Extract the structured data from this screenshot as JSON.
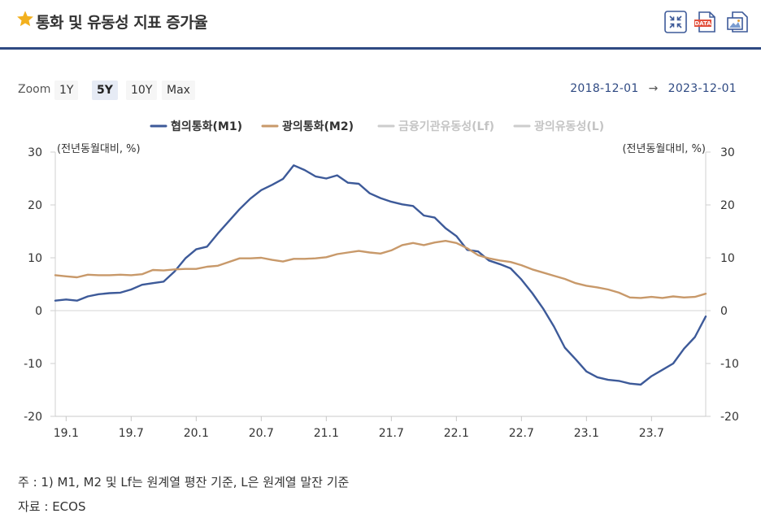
{
  "header": {
    "title": "통화 및 유동성 지표 증가율",
    "colors": {
      "accent": "#2f4a83",
      "star": "#f2b01e"
    },
    "icons": [
      "star-icon",
      "shrink-icon",
      "data-download-icon",
      "image-download-icon"
    ],
    "data_badge": "DATA"
  },
  "toolbar": {
    "zoom_label": "Zoom",
    "zoom_options": [
      "1Y",
      "5Y",
      "10Y",
      "Max"
    ],
    "zoom_selected": "5Y",
    "range_start": "2018-12-01",
    "range_arrow": "→",
    "range_end": "2023-12-01"
  },
  "chart_data": {
    "type": "line",
    "title": "통화 및 유동성 지표 증가율",
    "ylabel_left": "(전년동월대비, %)",
    "ylabel_right": "(전년동월대비, %)",
    "ylim": [
      -20,
      30
    ],
    "yticks": [
      30,
      20,
      10,
      0,
      -10,
      -20
    ],
    "xtick_labels": [
      "19.1",
      "19.7",
      "20.1",
      "20.7",
      "21.1",
      "21.7",
      "22.1",
      "22.7",
      "23.1",
      "23.7"
    ],
    "x_range": [
      "2018-12",
      "2023-12"
    ],
    "legend_position": "top-center",
    "legend": [
      {
        "name": "협의통화(M1)",
        "color": "#3d5a99",
        "active": true
      },
      {
        "name": "광의통화(M2)",
        "color": "#c8996a",
        "active": true
      },
      {
        "name": "금융기관유동성(Lf)",
        "color": "#cccccc",
        "active": false
      },
      {
        "name": "광의유동성(L)",
        "color": "#cccccc",
        "active": false
      }
    ],
    "series": [
      {
        "name": "협의통화(M1)",
        "color": "#3d5a99",
        "values": [
          1.9,
          2.1,
          1.9,
          2.7,
          3.1,
          3.3,
          3.4,
          4.0,
          4.9,
          5.2,
          5.5,
          7.4,
          9.9,
          11.6,
          12.1,
          14.6,
          16.9,
          19.2,
          21.2,
          22.8,
          23.8,
          24.9,
          27.5,
          26.6,
          25.4,
          25.0,
          25.6,
          24.2,
          24.0,
          22.2,
          21.3,
          20.6,
          20.1,
          19.8,
          18.0,
          17.6,
          15.6,
          14.1,
          11.5,
          11.2,
          9.5,
          8.8,
          8.0,
          5.9,
          3.3,
          0.4,
          -3.0,
          -7.0,
          -9.2,
          -11.5,
          -12.6,
          -13.1,
          -13.3,
          -13.8,
          -14.0,
          -12.4,
          -11.2,
          -10.0,
          -7.2,
          -5.0,
          -1.1
        ]
      },
      {
        "name": "광의통화(M2)",
        "color": "#c8996a",
        "values": [
          6.7,
          6.5,
          6.3,
          6.8,
          6.7,
          6.7,
          6.8,
          6.7,
          6.9,
          7.7,
          7.6,
          7.8,
          7.9,
          7.9,
          8.3,
          8.5,
          9.2,
          9.9,
          9.9,
          10.0,
          9.6,
          9.3,
          9.8,
          9.8,
          9.9,
          10.1,
          10.7,
          11.0,
          11.3,
          11.0,
          10.8,
          11.4,
          12.4,
          12.8,
          12.4,
          12.9,
          13.2,
          12.8,
          11.8,
          10.5,
          9.9,
          9.5,
          9.2,
          8.6,
          7.8,
          7.2,
          6.6,
          6.0,
          5.2,
          4.7,
          4.4,
          4.0,
          3.4,
          2.5,
          2.4,
          2.6,
          2.4,
          2.7,
          2.5,
          2.6,
          3.2
        ]
      }
    ]
  },
  "footnotes": {
    "note": "주 : 1) M1, M2 및 Lf는 원계열 평잔 기준, L은 원계열 말잔 기준",
    "source": "자료 : ECOS"
  }
}
